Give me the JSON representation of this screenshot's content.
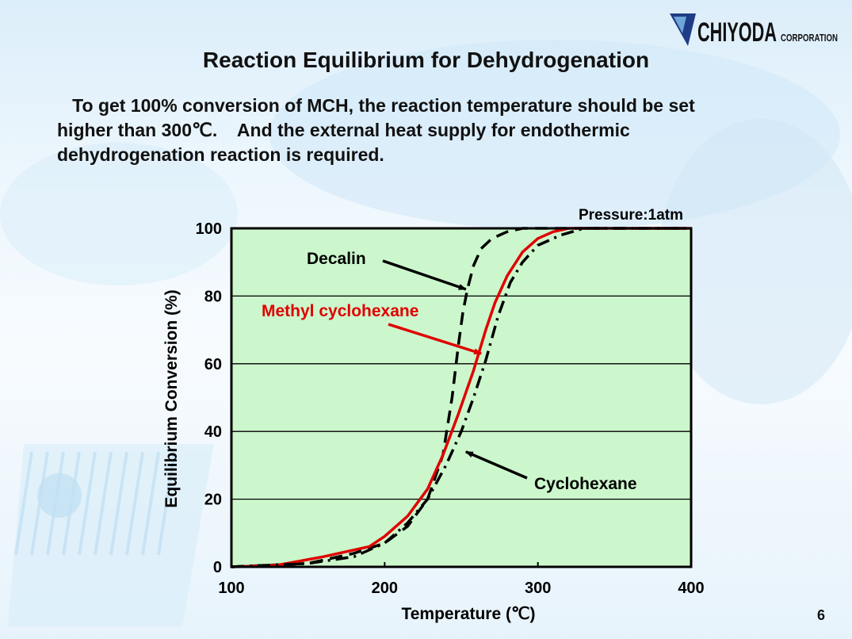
{
  "logo": {
    "text": "CHIYODA",
    "subtext": "CORPORATION"
  },
  "slide": {
    "title": "Reaction Equilibrium for Dehydrogenation",
    "body_lines": [
      "   To get 100% conversion of MCH, the reaction temperature should be set",
      "higher than 300℃.    And the external heat supply for endothermic",
      "dehydrogenation reaction is required."
    ],
    "page_number": "6"
  },
  "colors": {
    "plot_bg": "#ccf7cc",
    "mch": "#e00000",
    "ink": "#000000"
  },
  "chart_data": {
    "type": "line",
    "title": "",
    "xlabel": "Temperature (℃)",
    "ylabel": "Equilibrium Conversion (%)",
    "xlim": [
      100,
      400
    ],
    "ylim": [
      0,
      100
    ],
    "xticks": [
      100,
      200,
      300,
      400
    ],
    "yticks": [
      0,
      20,
      40,
      60,
      80,
      100
    ],
    "grid": "horizontal",
    "note": "Pressure:1atm",
    "series": [
      {
        "name": "Decalin",
        "style": "dashed",
        "color": "#000000",
        "x": [
          100,
          150,
          180,
          200,
          215,
          228,
          238,
          244,
          248,
          251,
          254,
          258,
          263,
          270,
          280,
          290,
          300,
          400
        ],
        "y": [
          0,
          1,
          4,
          7,
          12,
          20,
          33,
          50,
          65,
          75,
          82,
          89,
          94,
          97,
          99,
          100,
          100,
          100
        ]
      },
      {
        "name": "Methyl cyclohexane",
        "style": "solid",
        "color": "#e00000",
        "x": [
          100,
          130,
          160,
          190,
          200,
          215,
          228,
          238,
          248,
          258,
          266,
          272,
          280,
          290,
          300,
          310,
          320,
          330,
          400
        ],
        "y": [
          0,
          0.5,
          3,
          6,
          9,
          15,
          23,
          33,
          45,
          58,
          70,
          78,
          86,
          93,
          97,
          99,
          100,
          100,
          100
        ]
      },
      {
        "name": "Cyclohexane",
        "style": "dashdot",
        "color": "#000000",
        "x": [
          100,
          150,
          180,
          200,
          215,
          228,
          240,
          250,
          258,
          266,
          274,
          282,
          290,
          300,
          315,
          330,
          400
        ],
        "y": [
          0,
          1,
          3,
          7,
          13,
          20,
          30,
          40,
          50,
          61,
          74,
          84,
          90,
          95,
          98,
          100,
          100
        ]
      }
    ],
    "annotations": [
      {
        "label": "Decalin",
        "target_series": "Decalin",
        "target": [
          253,
          82
        ]
      },
      {
        "label": "Methyl cyclohexane",
        "target_series": "Methyl cyclohexane",
        "target": [
          263,
          63
        ]
      },
      {
        "label": "Cyclohexane",
        "target_series": "Cyclohexane",
        "target": [
          253,
          34
        ]
      }
    ]
  }
}
